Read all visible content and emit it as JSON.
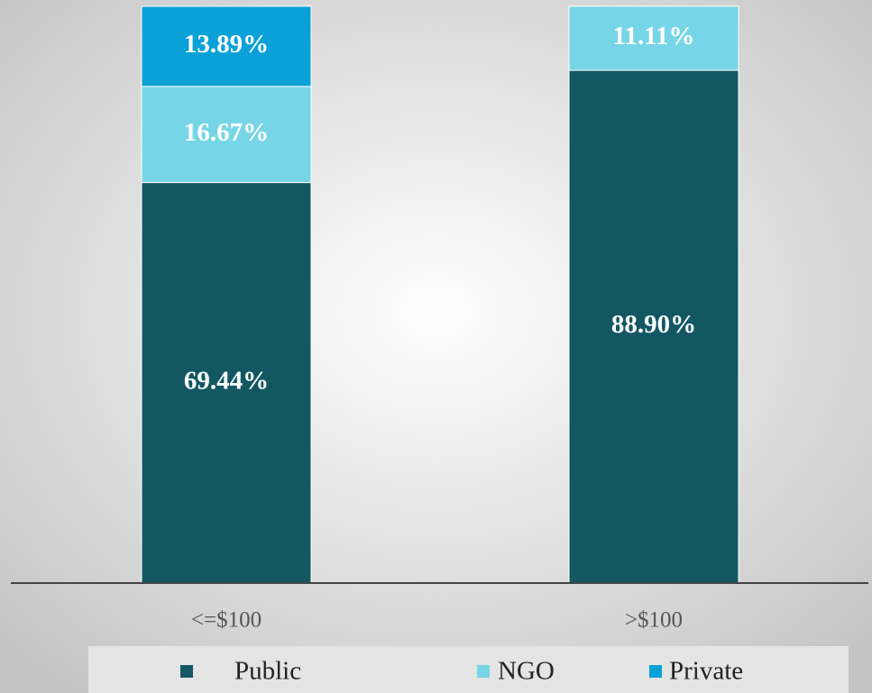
{
  "chart_data": {
    "type": "stacked_bar",
    "categories": [
      "<=$100",
      ">$100"
    ],
    "series": [
      {
        "name": "Public",
        "color": "#135763",
        "values": [
          69.44,
          88.9
        ],
        "value_labels": [
          "69.44%",
          "88.90%"
        ]
      },
      {
        "name": "NGO",
        "color": "#76d5e6",
        "values": [
          16.67,
          11.11
        ],
        "value_labels": [
          "16.67%",
          "11.11%"
        ]
      },
      {
        "name": "Private",
        "color": "#0aa0d8",
        "values": [
          13.89,
          null
        ],
        "value_labels": [
          "13.89%",
          null
        ]
      }
    ],
    "ylim": [
      0,
      100
    ]
  }
}
